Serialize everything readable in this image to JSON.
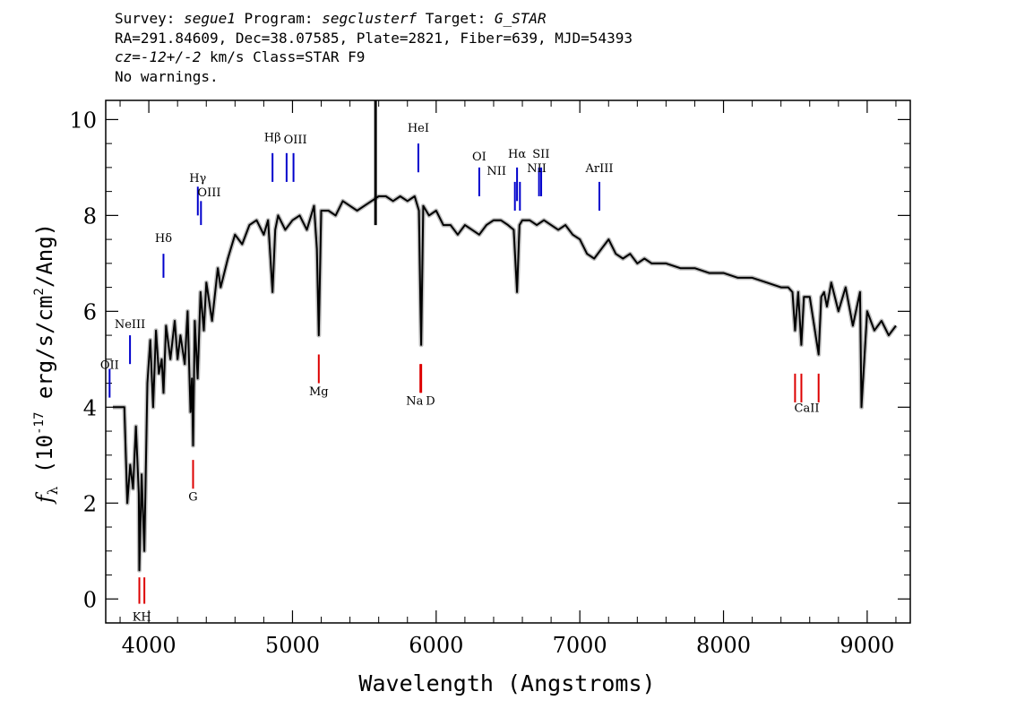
{
  "header": {
    "survey_label": "Survey: ",
    "survey": "segue1",
    "program_label": " Program: ",
    "program": "segclusterf",
    "target_label": " Target: ",
    "target": "G_STAR",
    "line2": "RA=291.84609, Dec=38.07585, Plate=2821, Fiber=639, MJD=54393",
    "cz_label": "cz",
    "cz_eq": "=",
    "cz_value": "-12+/-2",
    "cz_rest": " km/s Class=STAR F9",
    "line4": "No warnings."
  },
  "chart_data": {
    "type": "line",
    "title": "",
    "xlabel": "Wavelength (Angstroms)",
    "ylabel": "f_λ (10^-17 erg/s/cm^2/Ang)",
    "ylabel_prefix": "(10",
    "ylabel_exp": "-17",
    "ylabel_mid": " erg/s/cm",
    "ylabel_exp2": "2",
    "ylabel_suffix": "/Ang)",
    "xlim": [
      3700,
      9300
    ],
    "ylim": [
      -0.5,
      10.4
    ],
    "xticks": [
      4000,
      5000,
      6000,
      7000,
      8000,
      9000
    ],
    "yticks": [
      0,
      2,
      4,
      6,
      8,
      10
    ],
    "flux_color": "#000000",
    "error_color": "#bdbdbd",
    "emission_color": "#0000cc",
    "absorption_color": "#dd0000",
    "spectrum": {
      "wavelength": [
        3750,
        3800,
        3830,
        3850,
        3870,
        3890,
        3910,
        3930,
        3934,
        3950,
        3969,
        3990,
        4010,
        4030,
        4050,
        4070,
        4090,
        4102,
        4120,
        4150,
        4180,
        4200,
        4220,
        4250,
        4270,
        4290,
        4300,
        4308,
        4320,
        4340,
        4360,
        4383,
        4400,
        4440,
        4480,
        4500,
        4550,
        4600,
        4650,
        4700,
        4750,
        4800,
        4830,
        4861,
        4880,
        4900,
        4950,
        5000,
        5050,
        5100,
        5150,
        5170,
        5183,
        5200,
        5250,
        5300,
        5350,
        5400,
        5450,
        5500,
        5550,
        5600,
        5650,
        5700,
        5750,
        5800,
        5850,
        5880,
        5890,
        5896,
        5910,
        5950,
        6000,
        6050,
        6100,
        6150,
        6200,
        6250,
        6300,
        6350,
        6400,
        6450,
        6500,
        6540,
        6563,
        6580,
        6600,
        6650,
        6700,
        6750,
        6800,
        6850,
        6900,
        6950,
        7000,
        7050,
        7100,
        7150,
        7200,
        7250,
        7300,
        7350,
        7400,
        7450,
        7500,
        7600,
        7700,
        7800,
        7900,
        8000,
        8100,
        8200,
        8300,
        8400,
        8450,
        8480,
        8498,
        8520,
        8542,
        8560,
        8600,
        8662,
        8680,
        8700,
        8720,
        8750,
        8800,
        8850,
        8900,
        8950,
        8960,
        9000,
        9050,
        9100,
        9150,
        9200
      ],
      "flux": [
        4.0,
        4.0,
        4.0,
        2.0,
        2.8,
        2.3,
        3.6,
        2.2,
        0.6,
        2.6,
        1.0,
        4.5,
        5.4,
        4.0,
        5.6,
        4.7,
        5.0,
        4.3,
        5.7,
        5.0,
        5.8,
        5.0,
        5.5,
        4.9,
        6.0,
        3.9,
        4.6,
        3.2,
        5.8,
        4.6,
        6.4,
        5.6,
        6.6,
        5.8,
        6.9,
        6.5,
        7.1,
        7.6,
        7.4,
        7.8,
        7.9,
        7.6,
        7.9,
        6.4,
        7.7,
        8.0,
        7.7,
        7.9,
        8.0,
        7.7,
        8.2,
        7.3,
        5.5,
        8.1,
        8.1,
        8.0,
        8.3,
        8.2,
        8.1,
        8.2,
        8.3,
        8.4,
        8.4,
        8.3,
        8.4,
        8.3,
        8.4,
        8.1,
        6.2,
        5.3,
        8.2,
        8.0,
        8.1,
        7.8,
        7.8,
        7.6,
        7.8,
        7.7,
        7.6,
        7.8,
        7.9,
        7.9,
        7.8,
        7.7,
        6.4,
        7.8,
        7.9,
        7.9,
        7.8,
        7.9,
        7.8,
        7.7,
        7.8,
        7.6,
        7.5,
        7.2,
        7.1,
        7.3,
        7.5,
        7.2,
        7.1,
        7.2,
        7.0,
        7.1,
        7.0,
        7.0,
        6.9,
        6.9,
        6.8,
        6.8,
        6.7,
        6.7,
        6.6,
        6.5,
        6.5,
        6.4,
        5.6,
        6.4,
        5.3,
        6.3,
        6.3,
        5.1,
        6.3,
        6.4,
        6.1,
        6.6,
        6.0,
        6.5,
        5.7,
        6.4,
        4.0,
        6.0,
        5.6,
        5.8,
        5.5,
        5.7
      ]
    },
    "spike": {
      "x": 5578,
      "y_top": 10.4,
      "y_bottom": 7.8
    },
    "emission_lines": [
      {
        "label": "OII",
        "x": 3727,
        "y0": 4.2,
        "y1": 4.8
      },
      {
        "label": "NeIII",
        "x": 3869,
        "y0": 4.9,
        "y1": 5.5
      },
      {
        "label": "Hδ",
        "x": 4102,
        "y0": 6.7,
        "y1": 7.2
      },
      {
        "label": "Hγ",
        "x": 4341,
        "y0": 8.0,
        "y1": 8.6
      },
      {
        "label": "OIII",
        "x": 4363,
        "y0": 7.8,
        "y1": 8.3
      },
      {
        "label": "Hβ",
        "x": 4861,
        "y0": 8.7,
        "y1": 9.3
      },
      {
        "label": "OIII",
        "x": 4959,
        "y0": 8.7,
        "y1": 9.3
      },
      {
        "label": "OIII",
        "x": 5007,
        "y0": 8.7,
        "y1": 9.3
      },
      {
        "label": "HeI",
        "x": 5876,
        "y0": 8.9,
        "y1": 9.5
      },
      {
        "label": "OI",
        "x": 6300,
        "y0": 8.4,
        "y1": 9.0
      },
      {
        "label": "NII",
        "x": 6548,
        "y0": 8.1,
        "y1": 8.7
      },
      {
        "label": "Hα",
        "x": 6563,
        "y0": 8.3,
        "y1": 9.0
      },
      {
        "label": "NII",
        "x": 6583,
        "y0": 8.1,
        "y1": 8.7
      },
      {
        "label": "SII",
        "x": 6716,
        "y0": 8.4,
        "y1": 9.0
      },
      {
        "label": "SII",
        "x": 6731,
        "y0": 8.4,
        "y1": 9.0
      },
      {
        "label": "ArIII",
        "x": 7136,
        "y0": 8.1,
        "y1": 8.7
      }
    ],
    "absorption_lines": [
      {
        "label": "K",
        "x": 3934,
        "y0": -0.1,
        "y1": 0.45
      },
      {
        "label": "H",
        "x": 3969,
        "y0": -0.1,
        "y1": 0.45
      },
      {
        "label": "G",
        "x": 4308,
        "y0": 2.3,
        "y1": 2.9
      },
      {
        "label": "Mg",
        "x": 5183,
        "y0": 4.5,
        "y1": 5.1
      },
      {
        "label": "Na",
        "x": 5890,
        "y0": 4.3,
        "y1": 4.9
      },
      {
        "label": "D",
        "x": 5896,
        "y0": 4.3,
        "y1": 4.9
      },
      {
        "label": "CaII",
        "x": 8498,
        "y0": 4.1,
        "y1": 4.7
      },
      {
        "label": "CaII",
        "x": 8542,
        "y0": 4.1,
        "y1": 4.7
      },
      {
        "label": "CaII",
        "x": 8662,
        "y0": 4.1,
        "y1": 4.7
      }
    ],
    "line_labels": [
      {
        "text": "OII",
        "x": 3727,
        "y": 4.8
      },
      {
        "text": "NeIII",
        "x": 3869,
        "y": 5.65
      },
      {
        "text": "Hδ",
        "x": 4102,
        "y": 7.45
      },
      {
        "text": "Hγ",
        "x": 4341,
        "y": 8.7
      },
      {
        "text": "OIII",
        "x": 4420,
        "y": 8.4
      },
      {
        "text": "Hβ",
        "x": 4861,
        "y": 9.55
      },
      {
        "text": "OIII",
        "x": 5020,
        "y": 9.5
      },
      {
        "text": "HeI",
        "x": 5876,
        "y": 9.75
      },
      {
        "text": "OI",
        "x": 6300,
        "y": 9.15
      },
      {
        "text": "NII",
        "x": 6420,
        "y": 8.85
      },
      {
        "text": "Hα",
        "x": 6563,
        "y": 9.2
      },
      {
        "text": "SII",
        "x": 6730,
        "y": 9.2
      },
      {
        "text": "NII",
        "x": 6700,
        "y": 8.9
      },
      {
        "text": "ArIII",
        "x": 7136,
        "y": 8.9
      },
      {
        "text": "KH",
        "x": 3951,
        "y": -0.45
      },
      {
        "text": "G",
        "x": 4308,
        "y": 2.05
      },
      {
        "text": "Mg",
        "x": 5183,
        "y": 4.25
      },
      {
        "text": "Na",
        "x": 5850,
        "y": 4.05
      },
      {
        "text": "D",
        "x": 5960,
        "y": 4.05
      },
      {
        "text": "CaII",
        "x": 8580,
        "y": 3.9
      }
    ]
  }
}
